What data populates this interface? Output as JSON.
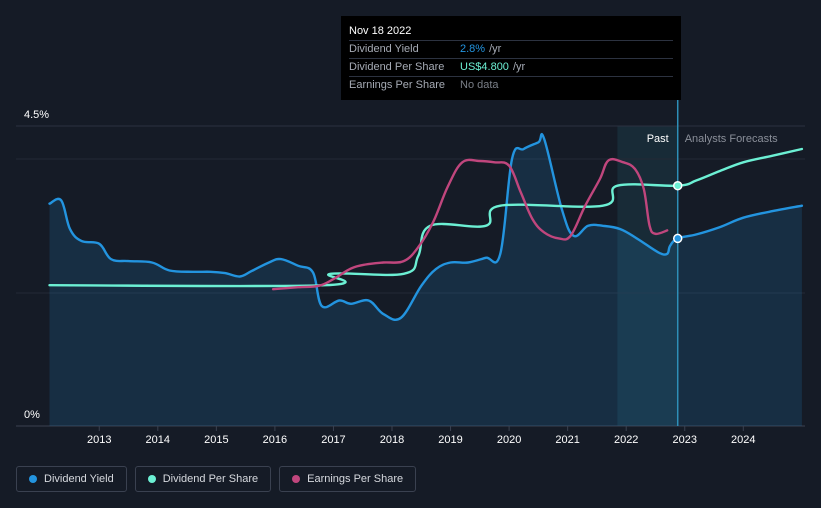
{
  "tooltip": {
    "date": "Nov 18 2022",
    "rows": [
      {
        "name": "Dividend Yield",
        "value": "2.8%",
        "unit": "/yr",
        "color": "#2394df"
      },
      {
        "name": "Dividend Per Share",
        "value": "US$4.800",
        "unit": "/yr",
        "color": "#6cf0d4"
      },
      {
        "name": "Earnings Per Share",
        "value": "No data",
        "unit": "",
        "color": "#7a7f88"
      }
    ]
  },
  "regions": {
    "past": "Past",
    "forecast": "Analysts Forecasts"
  },
  "legend": [
    {
      "label": "Dividend Yield",
      "color": "#2394df"
    },
    {
      "label": "Dividend Per Share",
      "color": "#6cf0d4"
    },
    {
      "label": "Earnings Per Share",
      "color": "#c0467d"
    }
  ],
  "chart_data": {
    "type": "line",
    "y_ticks": [
      "4.5%",
      "0%"
    ],
    "ylim": [
      0,
      4.5
    ],
    "x_ticks": [
      "2013",
      "2014",
      "2015",
      "2016",
      "2017",
      "2018",
      "2019",
      "2020",
      "2021",
      "2022",
      "2023",
      "2024"
    ],
    "xlim": [
      2012.15,
      2025.0
    ],
    "forecast_start": 2022.88,
    "highlight_start": 2021.85,
    "series": [
      {
        "name": "Dividend Yield",
        "color": "#2394df",
        "area": true,
        "points": [
          [
            2012.15,
            3.33
          ],
          [
            2012.35,
            3.38
          ],
          [
            2012.5,
            2.95
          ],
          [
            2012.7,
            2.77
          ],
          [
            2013.0,
            2.73
          ],
          [
            2013.2,
            2.5
          ],
          [
            2013.5,
            2.47
          ],
          [
            2013.9,
            2.45
          ],
          [
            2014.2,
            2.33
          ],
          [
            2014.6,
            2.31
          ],
          [
            2014.9,
            2.31
          ],
          [
            2015.15,
            2.29
          ],
          [
            2015.4,
            2.24
          ],
          [
            2015.6,
            2.32
          ],
          [
            2015.9,
            2.45
          ],
          [
            2016.1,
            2.5
          ],
          [
            2016.4,
            2.4
          ],
          [
            2016.65,
            2.3
          ],
          [
            2016.8,
            1.8
          ],
          [
            2017.1,
            1.88
          ],
          [
            2017.3,
            1.83
          ],
          [
            2017.6,
            1.88
          ],
          [
            2017.85,
            1.68
          ],
          [
            2018.15,
            1.62
          ],
          [
            2018.5,
            2.1
          ],
          [
            2018.75,
            2.35
          ],
          [
            2019.0,
            2.45
          ],
          [
            2019.3,
            2.45
          ],
          [
            2019.6,
            2.52
          ],
          [
            2019.85,
            2.58
          ],
          [
            2020.05,
            4.0
          ],
          [
            2020.25,
            4.15
          ],
          [
            2020.5,
            4.25
          ],
          [
            2020.6,
            4.3
          ],
          [
            2020.9,
            3.25
          ],
          [
            2021.1,
            2.85
          ],
          [
            2021.35,
            3.0
          ],
          [
            2021.6,
            3.0
          ],
          [
            2021.9,
            2.95
          ],
          [
            2022.2,
            2.8
          ],
          [
            2022.55,
            2.6
          ],
          [
            2022.7,
            2.58
          ],
          [
            2022.75,
            2.7
          ],
          [
            2022.88,
            2.81
          ],
          [
            2023.2,
            2.87
          ],
          [
            2023.6,
            2.98
          ],
          [
            2024.0,
            3.12
          ],
          [
            2024.5,
            3.22
          ],
          [
            2025.0,
            3.3
          ]
        ]
      },
      {
        "name": "Dividend Per Share",
        "color": "#6cf0d4",
        "points": [
          [
            2012.15,
            2.11
          ],
          [
            2016.85,
            2.11
          ],
          [
            2016.95,
            2.28
          ],
          [
            2018.2,
            2.28
          ],
          [
            2018.45,
            2.55
          ],
          [
            2018.65,
            3.0
          ],
          [
            2019.6,
            3.0
          ],
          [
            2019.85,
            3.3
          ],
          [
            2021.6,
            3.3
          ],
          [
            2021.85,
            3.6
          ],
          [
            2022.88,
            3.6
          ],
          [
            2023.2,
            3.68
          ],
          [
            2023.6,
            3.82
          ],
          [
            2024.0,
            3.95
          ],
          [
            2024.5,
            4.05
          ],
          [
            2025.0,
            4.15
          ]
        ]
      },
      {
        "name": "Earnings Per Share",
        "color": "#c0467d",
        "points": [
          [
            2015.97,
            2.05
          ],
          [
            2016.4,
            2.08
          ],
          [
            2016.75,
            2.1
          ],
          [
            2017.0,
            2.2
          ],
          [
            2017.3,
            2.36
          ],
          [
            2017.55,
            2.42
          ],
          [
            2017.85,
            2.45
          ],
          [
            2018.2,
            2.47
          ],
          [
            2018.45,
            2.68
          ],
          [
            2018.7,
            3.05
          ],
          [
            2018.95,
            3.58
          ],
          [
            2019.2,
            3.95
          ],
          [
            2019.5,
            3.97
          ],
          [
            2019.75,
            3.95
          ],
          [
            2020.0,
            3.9
          ],
          [
            2020.2,
            3.5
          ],
          [
            2020.4,
            3.1
          ],
          [
            2020.6,
            2.9
          ],
          [
            2020.85,
            2.81
          ],
          [
            2021.05,
            2.85
          ],
          [
            2021.3,
            3.3
          ],
          [
            2021.55,
            3.7
          ],
          [
            2021.7,
            3.98
          ],
          [
            2021.95,
            3.95
          ],
          [
            2022.15,
            3.85
          ],
          [
            2022.3,
            3.55
          ],
          [
            2022.4,
            3.0
          ],
          [
            2022.5,
            2.88
          ],
          [
            2022.7,
            2.93
          ]
        ]
      }
    ]
  }
}
